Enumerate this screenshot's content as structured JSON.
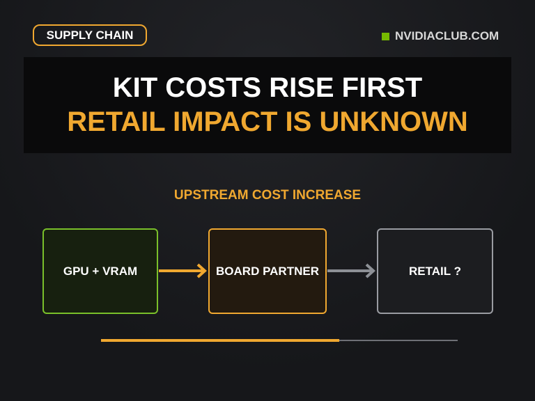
{
  "header": {
    "tag": "SUPPLY CHAIN",
    "brand": "NVIDIACLUB.COM"
  },
  "title": {
    "line1": "KIT COSTS RISE FIRST",
    "line2": "RETAIL IMPACT IS UNKNOWN"
  },
  "diagram": {
    "label": "UPSTREAM COST INCREASE",
    "nodes": [
      {
        "label": "GPU + VRAM"
      },
      {
        "label": "BOARD PARTNER"
      },
      {
        "label": "RETAIL ?"
      }
    ]
  }
}
